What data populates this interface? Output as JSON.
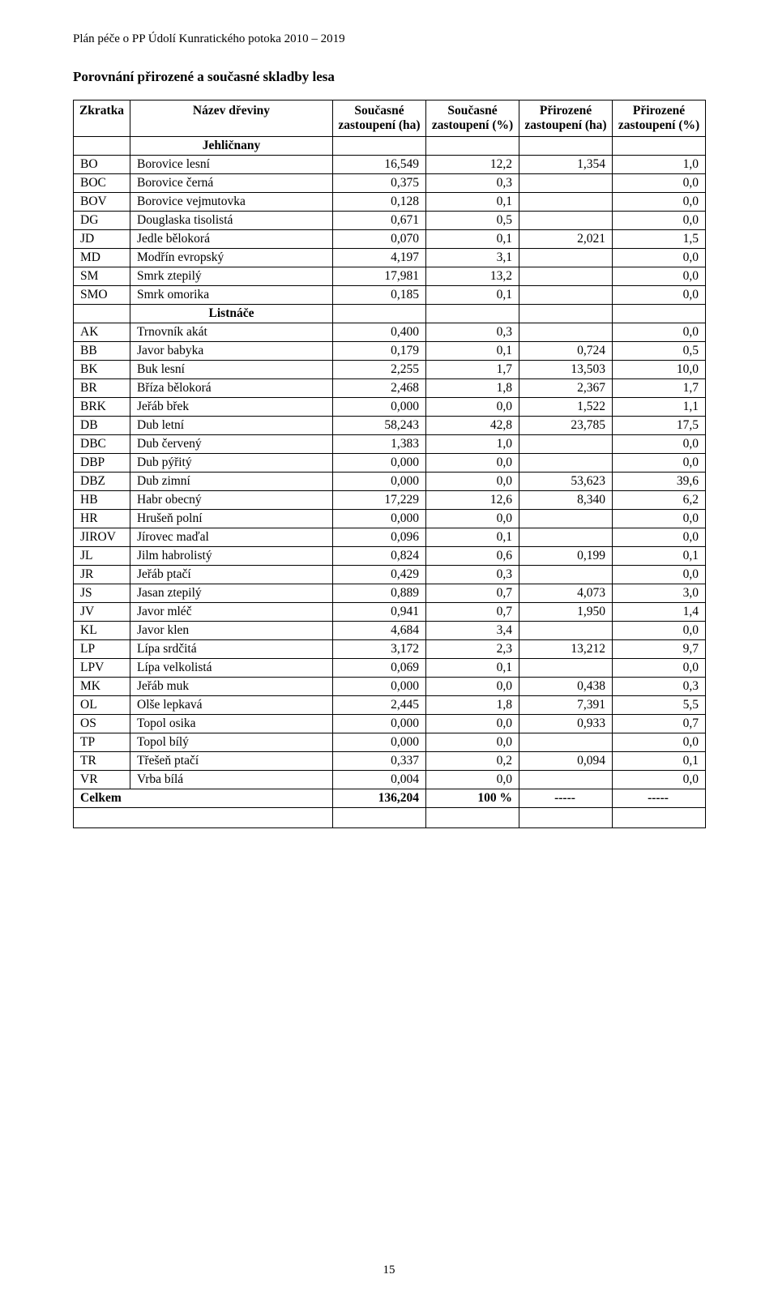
{
  "header": "Plán péče o PP Údolí Kunratického potoka 2010 – 2019",
  "section_title": "Porovnání přirozené a současné skladby lesa",
  "page_number": "15",
  "columns": {
    "c1": "Zkratka",
    "c2": "Název dřeviny",
    "c3": "Současné zastoupení (ha)",
    "c4": "Současné zastoupení (%)",
    "c5": "Přirozené zastoupení (ha)",
    "c6": "Přirozené zastoupení (%)"
  },
  "groups": [
    {
      "label": "Jehličnany",
      "rows": [
        {
          "code": "BO",
          "name": "Borovice lesní",
          "v1": "16,549",
          "v2": "12,2",
          "v3": "1,354",
          "v4": "1,0"
        },
        {
          "code": "BOC",
          "name": "Borovice černá",
          "v1": "0,375",
          "v2": "0,3",
          "v3": null,
          "v4": "0,0"
        },
        {
          "code": "BOV",
          "name": "Borovice vejmutovka",
          "v1": "0,128",
          "v2": "0,1",
          "v3": null,
          "v4": "0,0"
        },
        {
          "code": "DG",
          "name": "Douglaska tisolistá",
          "v1": "0,671",
          "v2": "0,5",
          "v3": null,
          "v4": "0,0"
        },
        {
          "code": "JD",
          "name": "Jedle bělokorá",
          "v1": "0,070",
          "v2": "0,1",
          "v3": "2,021",
          "v4": "1,5"
        },
        {
          "code": "MD",
          "name": "Modřín evropský",
          "v1": "4,197",
          "v2": "3,1",
          "v3": null,
          "v4": "0,0"
        },
        {
          "code": "SM",
          "name": "Smrk ztepilý",
          "v1": "17,981",
          "v2": "13,2",
          "v3": null,
          "v4": "0,0"
        },
        {
          "code": "SMO",
          "name": "Smrk omorika",
          "v1": "0,185",
          "v2": "0,1",
          "v3": null,
          "v4": "0,0"
        }
      ]
    },
    {
      "label": "Listnáče",
      "rows": [
        {
          "code": "AK",
          "name": "Trnovník akát",
          "v1": "0,400",
          "v2": "0,3",
          "v3": null,
          "v4": "0,0"
        },
        {
          "code": "BB",
          "name": "Javor babyka",
          "v1": "0,179",
          "v2": "0,1",
          "v3": "0,724",
          "v4": "0,5"
        },
        {
          "code": "BK",
          "name": "Buk lesní",
          "v1": "2,255",
          "v2": "1,7",
          "v3": "13,503",
          "v4": "10,0"
        },
        {
          "code": "BR",
          "name": "Bříza bělokorá",
          "v1": "2,468",
          "v2": "1,8",
          "v3": "2,367",
          "v4": "1,7"
        },
        {
          "code": "BRK",
          "name": "Jeřáb břek",
          "v1": "0,000",
          "v2": "0,0",
          "v3": "1,522",
          "v4": "1,1"
        },
        {
          "code": "DB",
          "name": "Dub letní",
          "v1": "58,243",
          "v2": "42,8",
          "v3": "23,785",
          "v4": "17,5"
        },
        {
          "code": "DBC",
          "name": "Dub červený",
          "v1": "1,383",
          "v2": "1,0",
          "v3": null,
          "v4": "0,0"
        },
        {
          "code": "DBP",
          "name": "Dub pýřitý",
          "v1": "0,000",
          "v2": "0,0",
          "v3": null,
          "v4": "0,0"
        },
        {
          "code": "DBZ",
          "name": "Dub zimní",
          "v1": "0,000",
          "v2": "0,0",
          "v3": "53,623",
          "v4": "39,6"
        },
        {
          "code": "HB",
          "name": "Habr obecný",
          "v1": "17,229",
          "v2": "12,6",
          "v3": "8,340",
          "v4": "6,2"
        },
        {
          "code": "HR",
          "name": "Hrušeň polní",
          "v1": "0,000",
          "v2": "0,0",
          "v3": null,
          "v4": "0,0"
        },
        {
          "code": "JIROV",
          "name": "Jírovec maďal",
          "v1": "0,096",
          "v2": "0,1",
          "v3": null,
          "v4": "0,0"
        },
        {
          "code": "JL",
          "name": "Jilm habrolistý",
          "v1": "0,824",
          "v2": "0,6",
          "v3": "0,199",
          "v4": "0,1"
        },
        {
          "code": "JR",
          "name": "Jeřáb ptačí",
          "v1": "0,429",
          "v2": "0,3",
          "v3": null,
          "v4": "0,0"
        },
        {
          "code": "JS",
          "name": "Jasan ztepilý",
          "v1": "0,889",
          "v2": "0,7",
          "v3": "4,073",
          "v4": "3,0"
        },
        {
          "code": "JV",
          "name": "Javor mléč",
          "v1": "0,941",
          "v2": "0,7",
          "v3": "1,950",
          "v4": "1,4"
        },
        {
          "code": "KL",
          "name": "Javor klen",
          "v1": "4,684",
          "v2": "3,4",
          "v3": null,
          "v4": "0,0"
        },
        {
          "code": "LP",
          "name": "Lípa srdčitá",
          "v1": "3,172",
          "v2": "2,3",
          "v3": "13,212",
          "v4": "9,7"
        },
        {
          "code": "LPV",
          "name": "Lípa velkolistá",
          "v1": "0,069",
          "v2": "0,1",
          "v3": null,
          "v4": "0,0"
        },
        {
          "code": "MK",
          "name": "Jeřáb muk",
          "v1": "0,000",
          "v2": "0,0",
          "v3": "0,438",
          "v4": "0,3"
        },
        {
          "code": "OL",
          "name": "Olše lepkavá",
          "v1": "2,445",
          "v2": "1,8",
          "v3": "7,391",
          "v4": "5,5"
        },
        {
          "code": "OS",
          "name": "Topol osika",
          "v1": "0,000",
          "v2": "0,0",
          "v3": "0,933",
          "v4": "0,7"
        },
        {
          "code": "TP",
          "name": "Topol bílý",
          "v1": "0,000",
          "v2": "0,0",
          "v3": null,
          "v4": "0,0"
        },
        {
          "code": "TR",
          "name": "Třešeň ptačí",
          "v1": "0,337",
          "v2": "0,2",
          "v3": "0,094",
          "v4": "0,1"
        },
        {
          "code": "VR",
          "name": "Vrba bílá",
          "v1": "0,004",
          "v2": "0,0",
          "v3": null,
          "v4": "0,0"
        }
      ]
    }
  ],
  "total_row": {
    "label": "Celkem",
    "v1": "136,204",
    "v2": "100 %",
    "v3": "-----",
    "v4": "-----"
  }
}
